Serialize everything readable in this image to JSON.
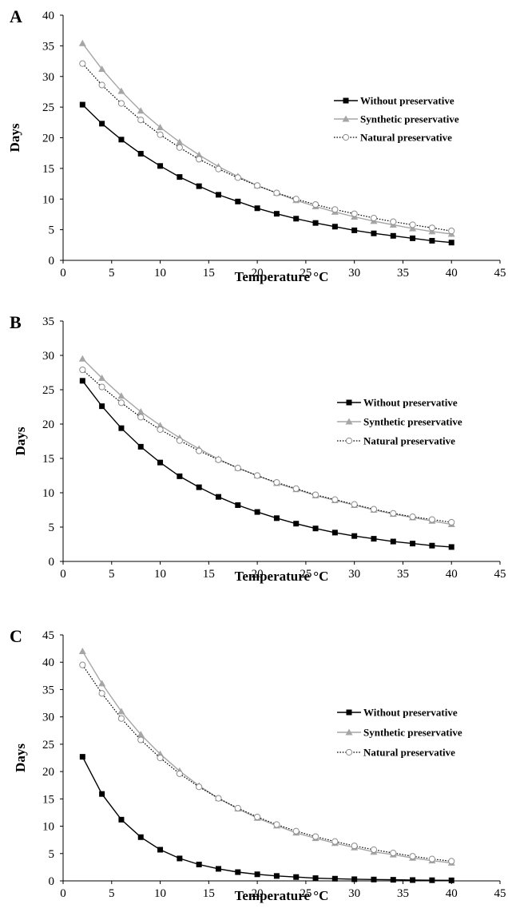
{
  "chart_data": [
    {
      "panel_label": "A",
      "type": "line",
      "xlabel": "Temperature °C",
      "ylabel": "Days",
      "xlim": [
        0,
        45
      ],
      "ylim": [
        0,
        40
      ],
      "xticks": [
        0,
        5,
        10,
        15,
        20,
        25,
        30,
        35,
        40,
        45
      ],
      "yticks": [
        0,
        5,
        10,
        15,
        20,
        25,
        30,
        35,
        40
      ],
      "grid": false,
      "legend_position": "right",
      "x": [
        2,
        4,
        6,
        8,
        10,
        12,
        14,
        16,
        18,
        20,
        22,
        24,
        26,
        28,
        30,
        32,
        34,
        36,
        38,
        40
      ],
      "series": [
        {
          "name": "Without preservative",
          "marker": "filled-square",
          "line": "solid",
          "color": "#000000",
          "values": [
            25.4,
            22.3,
            19.7,
            17.4,
            15.4,
            13.6,
            12.1,
            10.7,
            9.6,
            8.5,
            7.6,
            6.8,
            6.1,
            5.5,
            4.9,
            4.4,
            4.0,
            3.6,
            3.2,
            2.9
          ]
        },
        {
          "name": "Synthetic preservative",
          "marker": "gray-triangle",
          "line": "solid",
          "color": "#a6a6a6",
          "values": [
            35.4,
            31.2,
            27.6,
            24.4,
            21.7,
            19.3,
            17.2,
            15.3,
            13.7,
            12.2,
            11.0,
            9.8,
            8.8,
            7.9,
            7.1,
            6.4,
            5.8,
            5.2,
            4.7,
            4.3
          ]
        },
        {
          "name": "Natural preservative",
          "marker": "open-circle",
          "line": "dotted",
          "color": "#000000",
          "values": [
            32.1,
            28.6,
            25.6,
            22.9,
            20.5,
            18.4,
            16.5,
            14.9,
            13.5,
            12.2,
            11.0,
            10.0,
            9.1,
            8.3,
            7.6,
            6.9,
            6.3,
            5.8,
            5.3,
            4.8
          ]
        }
      ]
    },
    {
      "panel_label": "B",
      "type": "line",
      "xlabel": "Temperature °C",
      "ylabel": "Days",
      "xlim": [
        0,
        45
      ],
      "ylim": [
        0,
        35
      ],
      "xticks": [
        0,
        5,
        10,
        15,
        20,
        25,
        30,
        35,
        40,
        45
      ],
      "yticks": [
        0,
        5,
        10,
        15,
        20,
        25,
        30,
        35
      ],
      "grid": false,
      "legend_position": "right",
      "x": [
        2,
        4,
        6,
        8,
        10,
        12,
        14,
        16,
        18,
        20,
        22,
        24,
        26,
        28,
        30,
        32,
        34,
        36,
        38,
        40
      ],
      "series": [
        {
          "name": "Without preservative",
          "marker": "filled-square",
          "line": "solid",
          "color": "#000000",
          "values": [
            26.3,
            22.6,
            19.4,
            16.7,
            14.4,
            12.4,
            10.8,
            9.4,
            8.2,
            7.2,
            6.3,
            5.5,
            4.8,
            4.2,
            3.7,
            3.3,
            2.9,
            2.6,
            2.3,
            2.1
          ]
        },
        {
          "name": "Synthetic preservative",
          "marker": "gray-triangle",
          "line": "solid",
          "color": "#a6a6a6",
          "values": [
            29.5,
            26.7,
            24.1,
            21.8,
            19.8,
            18.0,
            16.4,
            14.9,
            13.6,
            12.5,
            11.4,
            10.5,
            9.6,
            8.9,
            8.2,
            7.5,
            6.9,
            6.4,
            5.9,
            5.4
          ]
        },
        {
          "name": "Natural preservative",
          "marker": "open-circle",
          "line": "dotted",
          "color": "#000000",
          "values": [
            27.9,
            25.4,
            23.1,
            21.0,
            19.2,
            17.6,
            16.1,
            14.8,
            13.6,
            12.5,
            11.5,
            10.6,
            9.7,
            9.0,
            8.3,
            7.6,
            7.0,
            6.5,
            6.1,
            5.7
          ]
        }
      ]
    },
    {
      "panel_label": "C",
      "type": "line",
      "xlabel": "Temperature °C",
      "ylabel": "Days",
      "xlim": [
        0,
        45
      ],
      "ylim": [
        0,
        45
      ],
      "xticks": [
        0,
        5,
        10,
        15,
        20,
        25,
        30,
        35,
        40,
        45
      ],
      "yticks": [
        0,
        5,
        10,
        15,
        20,
        25,
        30,
        35,
        40,
        45
      ],
      "grid": false,
      "legend_position": "right",
      "x": [
        2,
        4,
        6,
        8,
        10,
        12,
        14,
        16,
        18,
        20,
        22,
        24,
        26,
        28,
        30,
        32,
        34,
        36,
        38,
        40
      ],
      "series": [
        {
          "name": "Without preservative",
          "marker": "filled-square",
          "line": "solid",
          "color": "#000000",
          "values": [
            22.7,
            15.9,
            11.2,
            8.0,
            5.7,
            4.1,
            3.0,
            2.2,
            1.6,
            1.2,
            0.9,
            0.7,
            0.5,
            0.4,
            0.3,
            0.25,
            0.2,
            0.15,
            0.12,
            0.1
          ]
        },
        {
          "name": "Synthetic  preservative",
          "marker": "gray-triangle",
          "line": "solid",
          "color": "#a6a6a6",
          "values": [
            42.0,
            36.1,
            31.0,
            26.8,
            23.2,
            20.1,
            17.4,
            15.1,
            13.2,
            11.5,
            10.1,
            8.8,
            7.8,
            6.9,
            6.1,
            5.3,
            4.8,
            4.2,
            3.7,
            3.3
          ]
        },
        {
          "name": "Natural preservative",
          "marker": "open-circle",
          "line": "dotted",
          "color": "#000000",
          "values": [
            39.5,
            34.3,
            29.7,
            25.8,
            22.5,
            19.6,
            17.2,
            15.1,
            13.3,
            11.7,
            10.3,
            9.1,
            8.1,
            7.2,
            6.4,
            5.7,
            5.1,
            4.5,
            4.0,
            3.6
          ]
        }
      ]
    }
  ]
}
